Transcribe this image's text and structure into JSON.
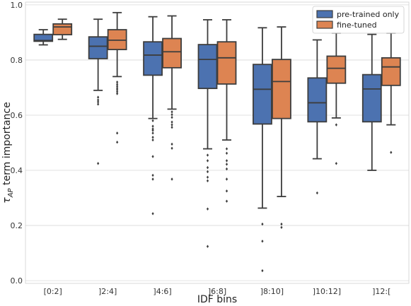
{
  "chart_data": {
    "type": "box",
    "xlabel": "IDF bins",
    "ylabel": "τAP term importance",
    "ylim": [
      -0.01,
      1.01
    ],
    "yticks": [
      0.0,
      0.2,
      0.4,
      0.6,
      0.8,
      1.0
    ],
    "ytick_labels": [
      "0.0",
      "0.2",
      "0.4",
      "0.6",
      "0.8",
      "1.0"
    ],
    "grid": true,
    "legend_position": "top-right",
    "categories": [
      "[0:2]",
      "]2:4]",
      "]4:6]",
      "]6:8]",
      "]8:10]",
      "]10:12]",
      "]12:["
    ],
    "series": [
      {
        "name": "pre-trained only",
        "color": "#4c72b0",
        "boxes": [
          {
            "whislo": 0.855,
            "q1": 0.868,
            "med": 0.871,
            "q3": 0.893,
            "whishi": 0.91,
            "fliers": []
          },
          {
            "whislo": 0.69,
            "q1": 0.805,
            "med": 0.85,
            "q3": 0.884,
            "whishi": 0.948,
            "fliers": [
              0.665,
              0.655,
              0.648,
              0.64,
              0.425
            ]
          },
          {
            "whislo": 0.588,
            "q1": 0.745,
            "med": 0.818,
            "q3": 0.866,
            "whishi": 0.957,
            "fliers": [
              0.58,
              0.56,
              0.55,
              0.545,
              0.535,
              0.52,
              0.51,
              0.45,
              0.382,
              0.368,
              0.243
            ]
          },
          {
            "whislo": 0.478,
            "q1": 0.697,
            "med": 0.802,
            "q3": 0.856,
            "whishi": 0.946,
            "fliers": [
              0.455,
              0.435,
              0.41,
              0.395,
              0.375,
              0.362,
              0.26,
              0.124
            ]
          },
          {
            "whislo": 0.263,
            "q1": 0.568,
            "med": 0.694,
            "q3": 0.784,
            "whishi": 0.917,
            "fliers": [
              0.205,
              0.143,
              0.036
            ]
          },
          {
            "whislo": 0.442,
            "q1": 0.576,
            "med": 0.645,
            "q3": 0.735,
            "whishi": 0.873,
            "fliers": [
              0.318
            ]
          },
          {
            "whislo": 0.4,
            "q1": 0.576,
            "med": 0.695,
            "q3": 0.747,
            "whishi": 0.893,
            "fliers": []
          }
        ]
      },
      {
        "name": "fine-tuned",
        "color": "#dd8452",
        "boxes": [
          {
            "whislo": 0.875,
            "q1": 0.892,
            "med": 0.92,
            "q3": 0.931,
            "whishi": 0.948,
            "fliers": []
          },
          {
            "whislo": 0.74,
            "q1": 0.838,
            "med": 0.872,
            "q3": 0.91,
            "whishi": 0.972,
            "fliers": [
              0.72,
              0.712,
              0.705,
              0.698,
              0.692,
              0.685,
              0.678,
              0.535,
              0.502
            ]
          },
          {
            "whislo": 0.622,
            "q1": 0.772,
            "med": 0.83,
            "q3": 0.878,
            "whishi": 0.96,
            "fliers": [
              0.612,
              0.602,
              0.592,
              0.575,
              0.565,
              0.556,
              0.495,
              0.48,
              0.368
            ]
          },
          {
            "whislo": 0.51,
            "q1": 0.713,
            "med": 0.808,
            "q3": 0.866,
            "whishi": 0.946,
            "fliers": [
              0.478,
              0.462,
              0.435,
              0.422,
              0.405,
              0.368,
              0.325,
              0.288
            ]
          },
          {
            "whislo": 0.305,
            "q1": 0.588,
            "med": 0.722,
            "q3": 0.802,
            "whishi": 0.92,
            "fliers": [
              0.205,
              0.193
            ]
          },
          {
            "whislo": 0.59,
            "q1": 0.716,
            "med": 0.77,
            "q3": 0.814,
            "whishi": 0.898,
            "fliers": [
              0.565,
              0.425
            ]
          },
          {
            "whislo": 0.565,
            "q1": 0.708,
            "med": 0.775,
            "q3": 0.808,
            "whishi": 0.898,
            "fliers": [
              0.465
            ]
          }
        ]
      }
    ]
  }
}
